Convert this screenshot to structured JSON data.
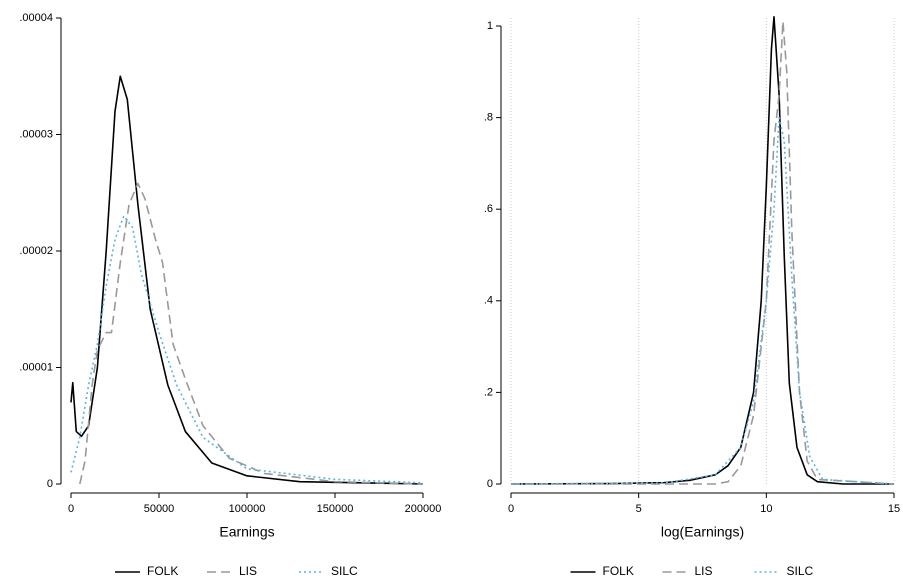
{
  "chart_data": [
    {
      "type": "line",
      "xlabel": "Earnings",
      "xlim": [
        0,
        200000
      ],
      "xticks": [
        0,
        50000,
        100000,
        150000,
        200000
      ],
      "ylim": [
        0,
        4e-05
      ],
      "yticks": [
        0,
        {
          "value": 1e-05,
          "label": ".00001"
        },
        {
          "value": 2e-05,
          "label": ".00002"
        },
        {
          "value": 3e-05,
          "label": ".00003"
        },
        {
          "value": 4e-05,
          "label": ".00004"
        }
      ],
      "xgrid": false,
      "legend": "bottom",
      "series": [
        {
          "name": "FOLK",
          "color": "#000000",
          "dash": "solid",
          "x": [
            0,
            1000,
            3000,
            6000,
            10000,
            15000,
            20000,
            25000,
            28000,
            32000,
            38000,
            45000,
            55000,
            65000,
            80000,
            100000,
            130000,
            200000
          ],
          "values": [
            7e-06,
            8.7e-06,
            4.5e-06,
            4.1e-06,
            5e-06,
            1e-05,
            2e-05,
            3.2e-05,
            3.5e-05,
            3.3e-05,
            2.4e-05,
            1.5e-05,
            8.5e-06,
            4.5e-06,
            1.8e-06,
            7e-07,
            2e-07,
            0
          ]
        },
        {
          "name": "LIS",
          "color": "#999999",
          "dash": "dashed",
          "x": [
            5000,
            8000,
            12000,
            15000,
            20000,
            23000,
            28000,
            33000,
            38000,
            42000,
            48000,
            52000,
            58000,
            65000,
            75000,
            90000,
            110000,
            150000,
            200000
          ],
          "values": [
            0,
            2e-06,
            8.5e-06,
            1.15e-05,
            1.3e-05,
            1.3e-05,
            1.9e-05,
            2.4e-05,
            2.58e-05,
            2.45e-05,
            2.1e-05,
            1.9e-05,
            1.2e-05,
            9e-06,
            5e-06,
            2.2e-06,
            9e-07,
            2e-07,
            0
          ]
        },
        {
          "name": "SILC",
          "color": "#5ab4e5",
          "dash": "dotted",
          "x": [
            0,
            5000,
            10000,
            15000,
            20000,
            25000,
            30000,
            35000,
            40000,
            50000,
            60000,
            75000,
            100000,
            150000,
            200000
          ],
          "values": [
            1e-06,
            4e-06,
            8.5e-06,
            1.2e-05,
            1.7e-05,
            2.1e-05,
            2.3e-05,
            2.2e-05,
            1.8e-05,
            1.3e-05,
            8.5e-06,
            4e-06,
            1.3e-06,
            4e-07,
            1e-07
          ]
        }
      ]
    },
    {
      "type": "line",
      "xlabel": "log(Earnings)",
      "xlim": [
        0,
        15
      ],
      "xticks": [
        0,
        5,
        10,
        15
      ],
      "ylim": [
        0,
        1
      ],
      "yticks": [
        0,
        {
          "value": 0.2,
          "label": ".2"
        },
        {
          "value": 0.4,
          "label": ".4"
        },
        {
          "value": 0.6,
          "label": ".6"
        },
        {
          "value": 0.8,
          "label": ".8"
        },
        1
      ],
      "xgrid": true,
      "legend": "bottom",
      "series": [
        {
          "name": "FOLK",
          "color": "#000000",
          "dash": "solid",
          "x": [
            0,
            4,
            6,
            7,
            8,
            8.5,
            9,
            9.5,
            9.8,
            10,
            10.2,
            10.3,
            10.5,
            10.7,
            10.9,
            11.2,
            11.6,
            12,
            13,
            15
          ],
          "values": [
            0,
            0.001,
            0.003,
            0.008,
            0.02,
            0.04,
            0.08,
            0.2,
            0.4,
            0.65,
            0.95,
            1.02,
            0.85,
            0.5,
            0.22,
            0.08,
            0.02,
            0.005,
            0,
            0
          ]
        },
        {
          "name": "LIS",
          "color": "#999999",
          "dash": "dashed",
          "x": [
            0,
            8,
            8.5,
            9,
            9.5,
            10,
            10.3,
            10.5,
            10.65,
            10.8,
            11,
            11.3,
            11.6,
            12,
            15
          ],
          "values": [
            0,
            0,
            0.005,
            0.04,
            0.15,
            0.4,
            0.75,
            0.85,
            1.01,
            0.9,
            0.55,
            0.2,
            0.05,
            0.01,
            0
          ]
        },
        {
          "name": "SILC",
          "color": "#5ab4e5",
          "dash": "dotted",
          "x": [
            0,
            6,
            8,
            9,
            9.5,
            10,
            10.3,
            10.5,
            10.7,
            11,
            11.3,
            11.7,
            12.2,
            15
          ],
          "values": [
            0,
            0.002,
            0.02,
            0.08,
            0.18,
            0.4,
            0.6,
            0.8,
            0.75,
            0.45,
            0.2,
            0.06,
            0.01,
            0
          ]
        }
      ]
    }
  ]
}
